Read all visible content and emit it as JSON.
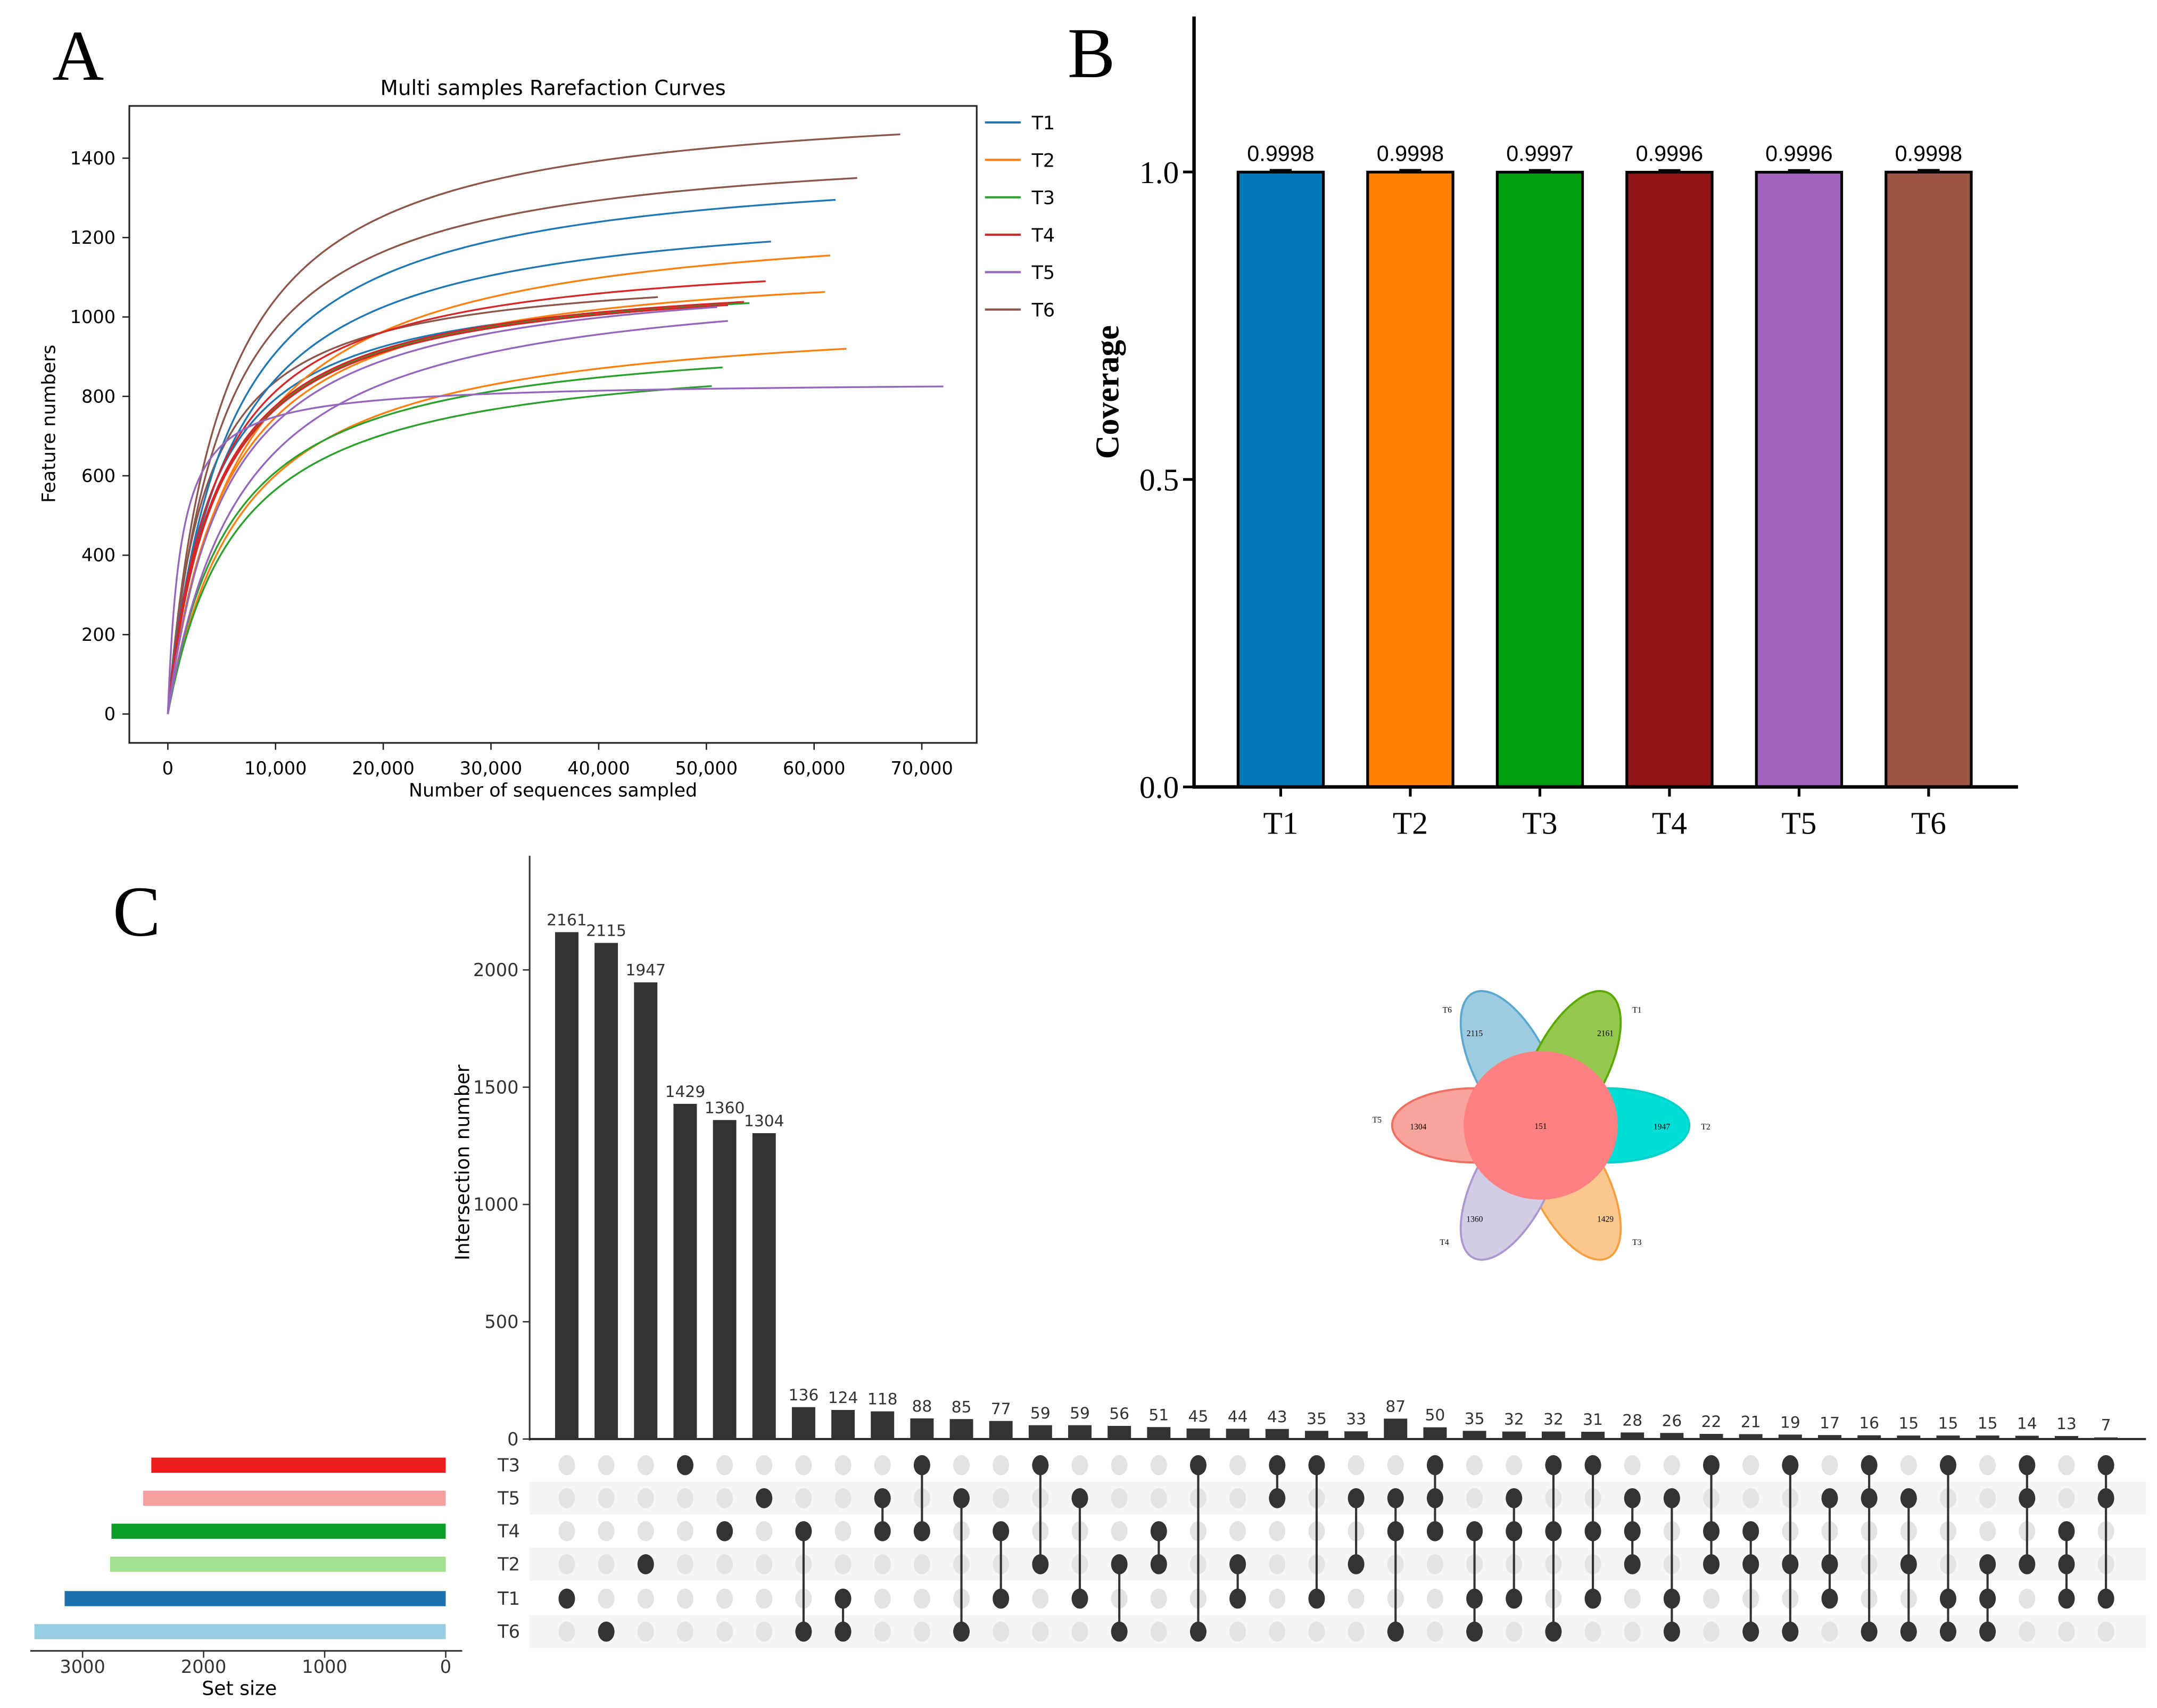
{
  "panels": {
    "a": "A",
    "b": "B",
    "c": "C"
  },
  "chart_data": [
    {
      "type": "line",
      "title": "Multi samples Rarefaction Curves",
      "xlabel": "Number of sequences sampled",
      "ylabel": "Feature numbers",
      "xlim": [
        -3600,
        75000
      ],
      "ylim": [
        -75,
        1530
      ],
      "grid": false,
      "legend_position": "right",
      "xticks": [
        0,
        10000,
        20000,
        30000,
        40000,
        50000,
        60000,
        70000
      ],
      "xtick_labels": [
        "0",
        "10,000",
        "20,000",
        "30,000",
        "40,000",
        "50,000",
        "60,000",
        "70,000"
      ],
      "yticks": [
        0,
        200,
        400,
        600,
        800,
        1000,
        1200,
        1400
      ],
      "ytick_labels": [
        "0",
        "200",
        "400",
        "600",
        "800",
        "1000",
        "1200",
        "1400"
      ],
      "legend": [
        {
          "name": "T1",
          "color": "#1f77b4"
        },
        {
          "name": "T2",
          "color": "#ff7f0e"
        },
        {
          "name": "T3",
          "color": "#2ca02c"
        },
        {
          "name": "T4",
          "color": "#d62728"
        },
        {
          "name": "T5",
          "color": "#9467bd"
        },
        {
          "name": "T6",
          "color": "#8c564b"
        }
      ],
      "series": [
        {
          "group": "T6",
          "max_sequences": 68000,
          "final_features": 1460,
          "half_saturation": 5000
        },
        {
          "group": "T6",
          "max_sequences": 64000,
          "final_features": 1350,
          "half_saturation": 5000
        },
        {
          "group": "T6",
          "max_sequences": 45500,
          "final_features": 1050,
          "half_saturation": 3500
        },
        {
          "group": "T1",
          "max_sequences": 62000,
          "final_features": 1295,
          "half_saturation": 5500
        },
        {
          "group": "T1",
          "max_sequences": 56000,
          "final_features": 1190,
          "half_saturation": 5500
        },
        {
          "group": "T1",
          "max_sequences": 51000,
          "final_features": 1030,
          "half_saturation": 4000
        },
        {
          "group": "T2",
          "max_sequences": 61500,
          "final_features": 1155,
          "half_saturation": 6500
        },
        {
          "group": "T2",
          "max_sequences": 61000,
          "final_features": 1063,
          "half_saturation": 5500
        },
        {
          "group": "T2",
          "max_sequences": 63000,
          "final_features": 920,
          "half_saturation": 7000
        },
        {
          "group": "T3",
          "max_sequences": 54000,
          "final_features": 1035,
          "half_saturation": 4500
        },
        {
          "group": "T3",
          "max_sequences": 51500,
          "final_features": 873,
          "half_saturation": 6000
        },
        {
          "group": "T3",
          "max_sequences": 50500,
          "final_features": 826,
          "half_saturation": 6500
        },
        {
          "group": "T4",
          "max_sequences": 55500,
          "final_features": 1090,
          "half_saturation": 4500
        },
        {
          "group": "T4",
          "max_sequences": 53500,
          "final_features": 1038,
          "half_saturation": 4500
        },
        {
          "group": "T4",
          "max_sequences": 52000,
          "final_features": 1030,
          "half_saturation": 4600
        },
        {
          "group": "T5",
          "max_sequences": 51000,
          "final_features": 1025,
          "half_saturation": 5500
        },
        {
          "group": "T5",
          "max_sequences": 52000,
          "final_features": 990,
          "half_saturation": 7000
        },
        {
          "group": "T5",
          "max_sequences": 72000,
          "final_features": 825,
          "half_saturation": 1200
        }
      ]
    },
    {
      "type": "bar",
      "title": "",
      "xlabel": "",
      "ylabel": "Coverage",
      "ylim": [
        0,
        1.25
      ],
      "yticks": [
        0,
        0.5,
        1.0
      ],
      "ytick_labels": [
        "0.0",
        "0.5",
        "1.0"
      ],
      "categories": [
        "T1",
        "T2",
        "T3",
        "T4",
        "T5",
        "T6"
      ],
      "values": [
        0.9998,
        0.9998,
        0.9997,
        0.9996,
        0.9996,
        0.9998
      ],
      "value_labels": [
        "0.9998",
        "0.9998",
        "0.9997",
        "0.9996",
        "0.9996",
        "0.9998"
      ],
      "colors": [
        "#0077b6",
        "#ff8000",
        "#009e0f",
        "#921518",
        "#a066bf",
        "#9b5445"
      ]
    },
    {
      "type": "bar",
      "subtype": "upset",
      "ylabel": "Intersection number",
      "xlabel": "Set size",
      "ylim": [
        0,
        2450
      ],
      "yticks": [
        0,
        500,
        1000,
        1500,
        2000
      ],
      "ytick_labels": [
        "0",
        "500",
        "1000",
        "1500",
        "2000"
      ],
      "set_size_ticks": [
        3000,
        2000,
        1000,
        0
      ],
      "set_size_tick_labels": [
        "3000",
        "2000",
        "1000",
        "0"
      ],
      "sets": [
        "T3",
        "T5",
        "T4",
        "T2",
        "T1",
        "T6"
      ],
      "set_sizes": [
        2432,
        2500,
        2761,
        2773,
        3148,
        3398
      ],
      "set_colors": [
        "#f01c1c",
        "#f4a0a0",
        "#0a9e28",
        "#a2e08e",
        "#1a6fae",
        "#96cde0"
      ],
      "intersections": [
        {
          "value": 2161,
          "sets": [
            "T1"
          ]
        },
        {
          "value": 2115,
          "sets": [
            "T6"
          ]
        },
        {
          "value": 1947,
          "sets": [
            "T2"
          ]
        },
        {
          "value": 1429,
          "sets": [
            "T3"
          ]
        },
        {
          "value": 1360,
          "sets": [
            "T4"
          ]
        },
        {
          "value": 1304,
          "sets": [
            "T5"
          ]
        },
        {
          "value": 136,
          "sets": [
            "T4",
            "T6"
          ]
        },
        {
          "value": 124,
          "sets": [
            "T1",
            "T6"
          ]
        },
        {
          "value": 118,
          "sets": [
            "T5",
            "T4"
          ]
        },
        {
          "value": 88,
          "sets": [
            "T3",
            "T4"
          ]
        },
        {
          "value": 85,
          "sets": [
            "T5",
            "T6"
          ]
        },
        {
          "value": 77,
          "sets": [
            "T4",
            "T1"
          ]
        },
        {
          "value": 59,
          "sets": [
            "T3",
            "T2"
          ]
        },
        {
          "value": 59,
          "sets": [
            "T5",
            "T1"
          ]
        },
        {
          "value": 56,
          "sets": [
            "T2",
            "T6"
          ]
        },
        {
          "value": 51,
          "sets": [
            "T4",
            "T2"
          ]
        },
        {
          "value": 45,
          "sets": [
            "T3",
            "T6"
          ]
        },
        {
          "value": 44,
          "sets": [
            "T2",
            "T1"
          ]
        },
        {
          "value": 43,
          "sets": [
            "T3",
            "T5"
          ]
        },
        {
          "value": 35,
          "sets": [
            "T3",
            "T1"
          ]
        },
        {
          "value": 33,
          "sets": [
            "T5",
            "T2"
          ]
        },
        {
          "value": 87,
          "sets": [
            "T5",
            "T4",
            "T6"
          ]
        },
        {
          "value": 50,
          "sets": [
            "T3",
            "T5",
            "T4"
          ]
        },
        {
          "value": 35,
          "sets": [
            "T4",
            "T1",
            "T6"
          ]
        },
        {
          "value": 32,
          "sets": [
            "T5",
            "T4",
            "T1"
          ]
        },
        {
          "value": 32,
          "sets": [
            "T3",
            "T4",
            "T6"
          ]
        },
        {
          "value": 31,
          "sets": [
            "T3",
            "T4",
            "T1"
          ]
        },
        {
          "value": 28,
          "sets": [
            "T5",
            "T4",
            "T2"
          ]
        },
        {
          "value": 26,
          "sets": [
            "T5",
            "T1",
            "T6"
          ]
        },
        {
          "value": 22,
          "sets": [
            "T3",
            "T4",
            "T2"
          ]
        },
        {
          "value": 21,
          "sets": [
            "T4",
            "T2",
            "T6"
          ]
        },
        {
          "value": 19,
          "sets": [
            "T3",
            "T2",
            "T6"
          ]
        },
        {
          "value": 17,
          "sets": [
            "T5",
            "T2",
            "T1"
          ]
        },
        {
          "value": 16,
          "sets": [
            "T3",
            "T5",
            "T6"
          ]
        },
        {
          "value": 15,
          "sets": [
            "T5",
            "T2",
            "T6"
          ]
        },
        {
          "value": 15,
          "sets": [
            "T3",
            "T1",
            "T6"
          ]
        },
        {
          "value": 15,
          "sets": [
            "T2",
            "T1",
            "T6"
          ]
        },
        {
          "value": 14,
          "sets": [
            "T3",
            "T5",
            "T2"
          ]
        },
        {
          "value": 13,
          "sets": [
            "T4",
            "T2",
            "T1"
          ]
        },
        {
          "value": 7,
          "sets": [
            "T3",
            "T5",
            "T1"
          ]
        }
      ]
    },
    {
      "type": "venn",
      "core_value": 151,
      "petals": [
        {
          "name": "T6",
          "value": 2115,
          "fill": "#9dcbe0",
          "stroke": "#5aa8d0"
        },
        {
          "name": "T1",
          "value": 2161,
          "fill": "#95c94e",
          "stroke": "#5aa800"
        },
        {
          "name": "T2",
          "value": 1947,
          "fill": "#00ded6",
          "stroke": "#00d0c8"
        },
        {
          "name": "T3",
          "value": 1429,
          "fill": "#fdc88e",
          "stroke": "#f5a040"
        },
        {
          "name": "T4",
          "value": 1360,
          "fill": "#d2cde4",
          "stroke": "#a89ad0"
        },
        {
          "name": "T5",
          "value": 1304,
          "fill": "#f8a39b",
          "stroke": "#f06e60"
        }
      ],
      "core_color": "#ff8080"
    }
  ]
}
